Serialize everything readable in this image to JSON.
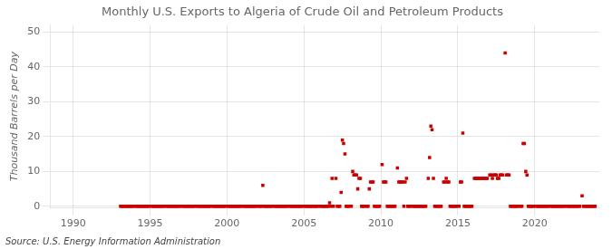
{
  "chart_data": {
    "type": "scatter",
    "title": "Monthly U.S. Exports to Algeria of Crude Oil and Petroleum Products",
    "ylabel": "Thousand Barrels per Day",
    "annotations": [
      "Source: U.S. Energy Information Administration"
    ],
    "color": "#cc0000",
    "marker": "square",
    "grid": true,
    "xlim": [
      1988.5,
      2024.2
    ],
    "xticks": [
      1990,
      1995,
      2000,
      2005,
      2010,
      2015,
      2020
    ],
    "ylim": [
      -0.5,
      52
    ],
    "yticks": [
      0,
      10,
      20,
      30,
      40,
      50
    ],
    "x": [
      1993.08,
      1993.17,
      1993.25,
      1993.33,
      1993.42,
      1993.5,
      1993.58,
      1993.67,
      1993.75,
      1993.83,
      1993.92,
      1994.08,
      1994.17,
      1994.25,
      1994.33,
      1994.42,
      1994.5,
      1994.58,
      1994.67,
      1994.75,
      1994.83,
      1994.92,
      1995.08,
      1995.17,
      1995.25,
      1995.33,
      1995.42,
      1995.5,
      1995.58,
      1995.67,
      1995.75,
      1995.83,
      1995.92,
      1996.08,
      1996.17,
      1996.25,
      1996.33,
      1996.42,
      1996.5,
      1996.58,
      1996.67,
      1996.75,
      1996.83,
      1996.92,
      1997.08,
      1997.17,
      1997.25,
      1997.33,
      1997.42,
      1997.5,
      1997.58,
      1997.67,
      1997.75,
      1997.83,
      1997.92,
      1998.08,
      1998.17,
      1998.25,
      1998.33,
      1998.42,
      1998.5,
      1998.58,
      1998.67,
      1998.75,
      1998.83,
      1998.92,
      1999.08,
      1999.17,
      1999.25,
      1999.33,
      1999.42,
      1999.5,
      1999.58,
      1999.67,
      1999.75,
      1999.83,
      1999.92,
      2000.08,
      2000.17,
      2000.25,
      2000.33,
      2000.42,
      2000.5,
      2000.58,
      2000.67,
      2000.75,
      2000.83,
      2000.92,
      2001.08,
      2001.17,
      2001.25,
      2001.33,
      2001.42,
      2001.5,
      2001.58,
      2001.67,
      2001.75,
      2001.83,
      2001.92,
      2002.08,
      2002.17,
      2002.25,
      2002.33,
      2002.42,
      2002.5,
      2002.58,
      2002.67,
      2002.75,
      2002.83,
      2002.92,
      2003.08,
      2003.17,
      2003.25,
      2003.33,
      2003.42,
      2003.5,
      2003.58,
      2003.67,
      2003.75,
      2003.83,
      2003.92,
      2004.08,
      2004.17,
      2004.25,
      2004.33,
      2004.42,
      2004.5,
      2004.58,
      2004.67,
      2004.75,
      2004.83,
      2004.92,
      2005.08,
      2005.17,
      2005.25,
      2005.33,
      2005.42,
      2005.5,
      2005.58,
      2005.67,
      2005.75,
      2005.83,
      2005.92,
      2006.08,
      2006.17,
      2006.25,
      2006.33,
      2006.42,
      2006.5,
      2006.58,
      2006.67,
      2006.75,
      2006.83,
      2006.92,
      2007.08,
      2007.17,
      2007.25,
      2007.33,
      2007.42,
      2007.5,
      2007.58,
      2007.67,
      2007.75,
      2007.83,
      2007.92,
      2008.08,
      2008.17,
      2008.25,
      2008.33,
      2008.42,
      2008.5,
      2008.58,
      2008.67,
      2008.75,
      2008.83,
      2008.92,
      2009.08,
      2009.17,
      2009.25,
      2009.33,
      2009.42,
      2009.5,
      2009.58,
      2009.67,
      2009.75,
      2009.83,
      2009.92,
      2010.08,
      2010.17,
      2010.25,
      2010.33,
      2010.42,
      2010.5,
      2010.58,
      2010.67,
      2010.75,
      2010.83,
      2010.92,
      2011.08,
      2011.17,
      2011.25,
      2011.33,
      2011.42,
      2011.5,
      2011.58,
      2011.67,
      2011.75,
      2011.83,
      2011.92,
      2012.08,
      2012.17,
      2012.25,
      2012.33,
      2012.42,
      2012.5,
      2012.58,
      2012.67,
      2012.75,
      2012.83,
      2012.92,
      2013.08,
      2013.17,
      2013.25,
      2013.33,
      2013.42,
      2013.5,
      2013.58,
      2013.67,
      2013.75,
      2013.83,
      2013.92,
      2014.08,
      2014.17,
      2014.25,
      2014.33,
      2014.42,
      2014.5,
      2014.58,
      2014.67,
      2014.75,
      2014.83,
      2014.92,
      2015.08,
      2015.17,
      2015.25,
      2015.33,
      2015.42,
      2015.5,
      2015.58,
      2015.67,
      2015.75,
      2015.83,
      2015.92,
      2016.08,
      2016.17,
      2016.25,
      2016.33,
      2016.42,
      2016.5,
      2016.58,
      2016.67,
      2016.75,
      2016.83,
      2016.92,
      2017.08,
      2017.17,
      2017.25,
      2017.33,
      2017.42,
      2017.5,
      2017.58,
      2017.67,
      2017.75,
      2017.83,
      2017.92,
      2018.08,
      2018.17,
      2018.25,
      2018.33,
      2018.42,
      2018.5,
      2018.58,
      2018.67,
      2018.75,
      2018.83,
      2018.92,
      2019.08,
      2019.17,
      2019.25,
      2019.33,
      2019.42,
      2019.5,
      2019.58,
      2019.67,
      2019.75,
      2019.83,
      2019.92,
      2020.08,
      2020.17,
      2020.25,
      2020.33,
      2020.42,
      2020.5,
      2020.58,
      2020.67,
      2020.75,
      2020.83,
      2020.92,
      2021.08,
      2021.17,
      2021.25,
      2021.33,
      2021.42,
      2021.5,
      2021.58,
      2021.67,
      2021.75,
      2021.83,
      2021.92,
      2022.08,
      2022.17,
      2022.25,
      2022.33,
      2022.42,
      2022.5,
      2022.58,
      2022.67,
      2022.75,
      2022.83,
      2022.92,
      2023.08,
      2023.17,
      2023.25,
      2023.33,
      2023.42,
      2023.5,
      2023.58,
      2023.67,
      2023.75,
      2023.83,
      2023.92
    ],
    "values": [
      0,
      0,
      0,
      0,
      0,
      0,
      0,
      0,
      0,
      0,
      0,
      0,
      0,
      0,
      0,
      0,
      0,
      0,
      0,
      0,
      0,
      0,
      0,
      0,
      0,
      0,
      0,
      0,
      0,
      0,
      0,
      0,
      0,
      0,
      0,
      0,
      0,
      0,
      0,
      0,
      0,
      0,
      0,
      0,
      0,
      0,
      0,
      0,
      0,
      0,
      0,
      0,
      0,
      0,
      0,
      0,
      0,
      0,
      0,
      0,
      0,
      0,
      0,
      0,
      0,
      0,
      0,
      0,
      0,
      0,
      0,
      0,
      0,
      0,
      0,
      0,
      0,
      0,
      0,
      0,
      0,
      0,
      0,
      0,
      0,
      0,
      0,
      0,
      0,
      0,
      0,
      0,
      0,
      0,
      0,
      0,
      0,
      0,
      0,
      0,
      0,
      0,
      6,
      0,
      0,
      0,
      0,
      0,
      0,
      0,
      0,
      0,
      0,
      0,
      0,
      0,
      0,
      0,
      0,
      0,
      0,
      0,
      0,
      0,
      0,
      0,
      0,
      0,
      0,
      0,
      0,
      0,
      0,
      0,
      0,
      0,
      0,
      0,
      0,
      0,
      0,
      0,
      0,
      0,
      0,
      0,
      0,
      0,
      0,
      0,
      1,
      0,
      8,
      0,
      8,
      0,
      0,
      0,
      4,
      19,
      18,
      15,
      0,
      0,
      0,
      0,
      10,
      9,
      9,
      9,
      5,
      8,
      8,
      0,
      0,
      0,
      0,
      0,
      5,
      7,
      7,
      7,
      0,
      0,
      0,
      0,
      0,
      12,
      7,
      7,
      7,
      0,
      0,
      0,
      0,
      0,
      0,
      0,
      11,
      7,
      7,
      7,
      7,
      0,
      7,
      8,
      0,
      0,
      0,
      0,
      0,
      0,
      0,
      0,
      0,
      0,
      0,
      0,
      0,
      0,
      8,
      14,
      23,
      22,
      8,
      0,
      0,
      0,
      0,
      0,
      0,
      7,
      7,
      8,
      7,
      7,
      0,
      0,
      0,
      0,
      0,
      0,
      0,
      7,
      7,
      21,
      0,
      0,
      0,
      0,
      0,
      0,
      0,
      8,
      8,
      8,
      8,
      8,
      8,
      8,
      8,
      8,
      8,
      8,
      9,
      9,
      8,
      9,
      9,
      9,
      8,
      8,
      9,
      9,
      9,
      44,
      9,
      9,
      9,
      0,
      0,
      0,
      0,
      0,
      0,
      0,
      0,
      0,
      18,
      18,
      10,
      9,
      0,
      0,
      0,
      0,
      0,
      0,
      0,
      0,
      0,
      0,
      0,
      0,
      0,
      0,
      0,
      0,
      0,
      0,
      0,
      0,
      0,
      0,
      0,
      0,
      0,
      0,
      0,
      0,
      0,
      0,
      0,
      0,
      0,
      0,
      0,
      0,
      0,
      0,
      3,
      0,
      0,
      0,
      0,
      0,
      0,
      0,
      0,
      0,
      0
    ]
  }
}
